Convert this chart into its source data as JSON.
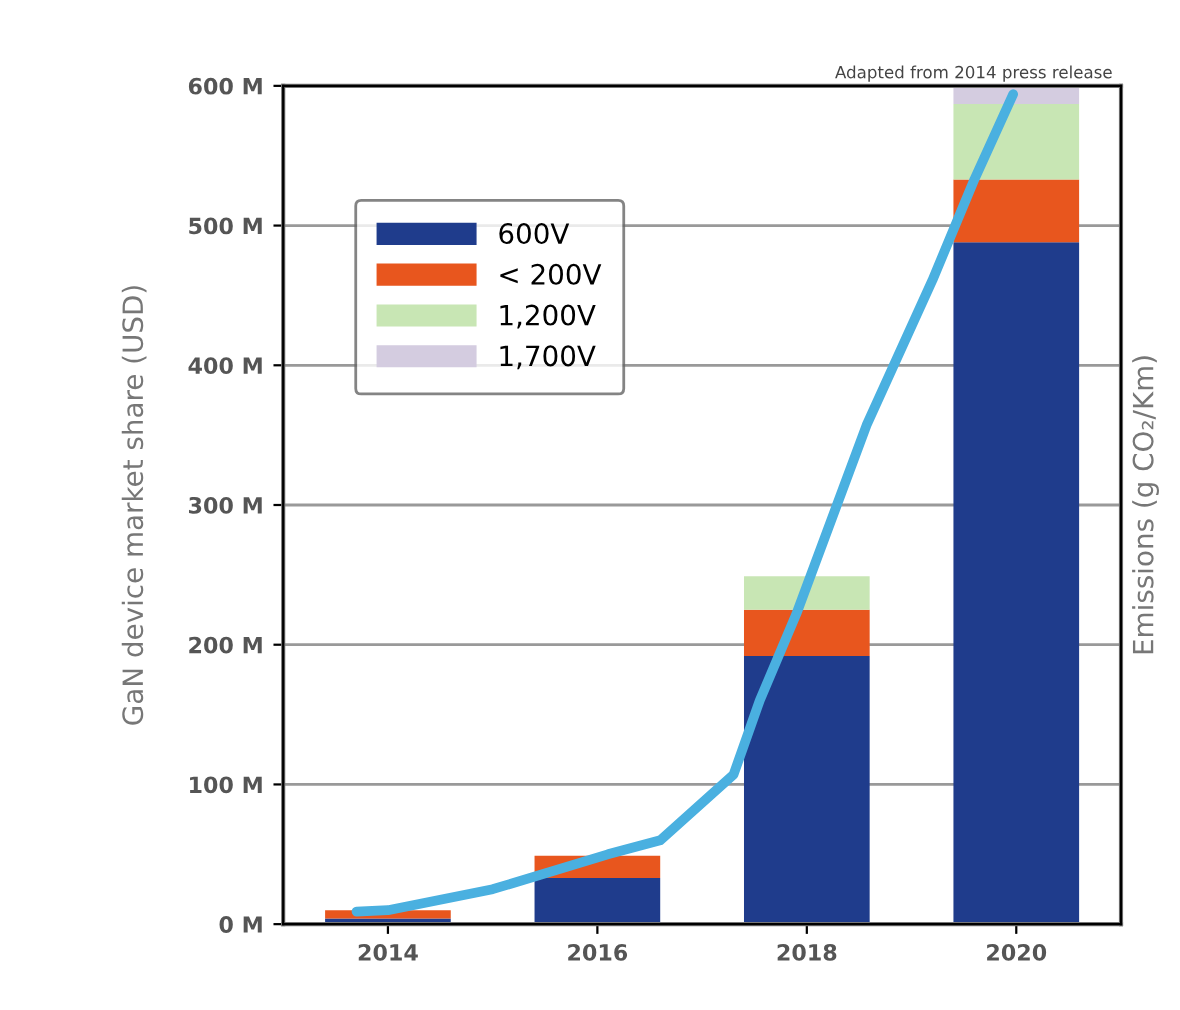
{
  "chart_data": {
    "type": "bar",
    "stacked": true,
    "ylabel": "GaN device market share (USD)",
    "y2label": "Emissions (g CO₂/Km)",
    "x": [
      2014,
      2016,
      2018,
      2020
    ],
    "series": [
      {
        "name": "600V",
        "color": "#1f3c8c",
        "values": [
          4,
          33,
          192,
          488
        ]
      },
      {
        "name": "< 200V",
        "color": "#e8561e",
        "values": [
          6,
          16,
          33,
          45
        ]
      },
      {
        "name": "1,200V",
        "color": "#c8e6b4",
        "values": [
          0,
          0,
          24,
          54
        ]
      },
      {
        "name": "1,700V",
        "color": "#d4cce0",
        "values": [
          0,
          0,
          0,
          13
        ]
      },
      {
        "type": "line",
        "color": "#4ab0e0",
        "x": [
          2013.7,
          2014,
          2015,
          2016.1,
          2016.6,
          2017.3,
          2017.55,
          2017.9,
          2018.57,
          2019.2,
          2019.6,
          2019.97
        ],
        "values": [
          9,
          10,
          25,
          50,
          60,
          107,
          160,
          222,
          357,
          461,
          533,
          594
        ]
      }
    ],
    "xlim": [
      2013,
      2021
    ],
    "xticks": [
      2014,
      2016,
      2018,
      2020
    ],
    "ylim": [
      0,
      600
    ],
    "yticks": [
      {
        "value": 0,
        "label": "0 M"
      },
      {
        "value": 100,
        "label": "100 M"
      },
      {
        "value": 200,
        "label": "200 M"
      },
      {
        "value": 300,
        "label": "300 M"
      },
      {
        "value": 400,
        "label": "400 M"
      },
      {
        "value": 500,
        "label": "500 M"
      },
      {
        "value": 600,
        "label": "600 M"
      }
    ],
    "grid": "y",
    "legend": "top left",
    "annotations": [
      "Adapted from 2014 press release"
    ]
  }
}
